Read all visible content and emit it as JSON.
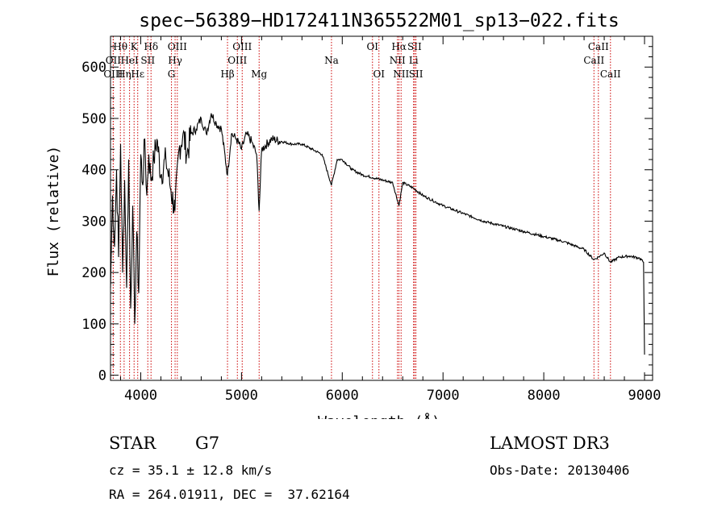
{
  "chart_data": {
    "type": "line",
    "title": "spec−56389−HD172411N365522M01_sp13−022.fits",
    "xlabel": "Wavelength (Å)",
    "ylabel": "Flux (relative)",
    "xlim": [
      3700,
      9080
    ],
    "ylim": [
      -10,
      660
    ],
    "xticks": [
      4000,
      5000,
      6000,
      7000,
      8000,
      9000
    ],
    "yticks": [
      0,
      100,
      200,
      300,
      400,
      500,
      600
    ],
    "series": [
      {
        "name": "spectrum",
        "x": [
          3700,
          3720,
          3740,
          3760,
          3780,
          3800,
          3820,
          3840,
          3860,
          3880,
          3900,
          3920,
          3940,
          3960,
          3980,
          4000,
          4020,
          4040,
          4060,
          4080,
          4100,
          4130,
          4160,
          4200,
          4250,
          4300,
          4340,
          4380,
          4420,
          4460,
          4500,
          4550,
          4600,
          4650,
          4700,
          4750,
          4800,
          4861,
          4900,
          4950,
          5000,
          5050,
          5100,
          5150,
          5175,
          5200,
          5300,
          5400,
          5500,
          5600,
          5700,
          5800,
          5893,
          5950,
          6000,
          6100,
          6200,
          6300,
          6400,
          6500,
          6563,
          6600,
          6700,
          6800,
          6900,
          7000,
          7200,
          7400,
          7600,
          7800,
          8000,
          8200,
          8400,
          8498,
          8542,
          8600,
          8662,
          8750,
          8850,
          8950,
          8990,
          9000
        ],
        "y": [
          170,
          350,
          250,
          400,
          230,
          450,
          200,
          380,
          170,
          420,
          130,
          330,
          100,
          280,
          160,
          430,
          370,
          460,
          350,
          430,
          380,
          420,
          460,
          390,
          420,
          360,
          320,
          440,
          470,
          430,
          470,
          480,
          500,
          470,
          510,
          490,
          480,
          390,
          470,
          460,
          440,
          470,
          455,
          430,
          320,
          440,
          460,
          455,
          450,
          450,
          440,
          430,
          370,
          420,
          420,
          400,
          390,
          385,
          380,
          375,
          330,
          375,
          365,
          350,
          340,
          330,
          315,
          300,
          290,
          280,
          270,
          260,
          245,
          225,
          230,
          238,
          220,
          230,
          232,
          228,
          220,
          40
        ]
      }
    ],
    "lines": [
      {
        "label": "Hθ",
        "wavelength": 3798,
        "row": 1
      },
      {
        "label": "OII",
        "wavelength": 3727,
        "row": 2
      },
      {
        "label": "OIII",
        "wavelength": 3727,
        "row": 3
      },
      {
        "label": "K",
        "wavelength": 3934,
        "row": 1
      },
      {
        "label": "HeI",
        "wavelength": 3889,
        "row": 2
      },
      {
        "label": "Hη",
        "wavelength": 3835,
        "row": 3
      },
      {
        "label": "Hε",
        "wavelength": 3970,
        "row": 3
      },
      {
        "label": "SII",
        "wavelength": 4070,
        "row": 2
      },
      {
        "label": "Hδ",
        "wavelength": 4102,
        "row": 1
      },
      {
        "label": "OIII",
        "wavelength": 4363,
        "row": 1
      },
      {
        "label": "Hγ",
        "wavelength": 4341,
        "row": 2
      },
      {
        "label": "G",
        "wavelength": 4305,
        "row": 3
      },
      {
        "label": "Hβ",
        "wavelength": 4861,
        "row": 3
      },
      {
        "label": "OIII",
        "wavelength": 5007,
        "row": 1
      },
      {
        "label": "OIII",
        "wavelength": 4959,
        "row": 2
      },
      {
        "label": "Mg",
        "wavelength": 5175,
        "row": 3
      },
      {
        "label": "Na",
        "wavelength": 5893,
        "row": 2
      },
      {
        "label": "OI",
        "wavelength": 6300,
        "row": 1
      },
      {
        "label": "OI",
        "wavelength": 6364,
        "row": 3
      },
      {
        "label": "Hα",
        "wavelength": 6563,
        "row": 1
      },
      {
        "label": "NII",
        "wavelength": 6548,
        "row": 2
      },
      {
        "label": "NII",
        "wavelength": 6584,
        "row": 3
      },
      {
        "label": "SII",
        "wavelength": 6717,
        "row": 1
      },
      {
        "label": "Li",
        "wavelength": 6708,
        "row": 2
      },
      {
        "label": "SII",
        "wavelength": 6731,
        "row": 3
      },
      {
        "label": "CaII",
        "wavelength": 8542,
        "row": 1
      },
      {
        "label": "CaII",
        "wavelength": 8498,
        "row": 2
      },
      {
        "label": "CaII",
        "wavelength": 8662,
        "row": 3
      }
    ],
    "line_color": "#cc0000",
    "curve_color": "#000000"
  },
  "info": {
    "class_label": "STAR",
    "subclass": "G7",
    "survey": "LAMOST DR3",
    "redshift": "cz = 35.1 ± 12.8 km/s",
    "obs_date": "Obs-Date: 20130406",
    "coords": "RA = 264.01911, DEC =  37.62164"
  }
}
